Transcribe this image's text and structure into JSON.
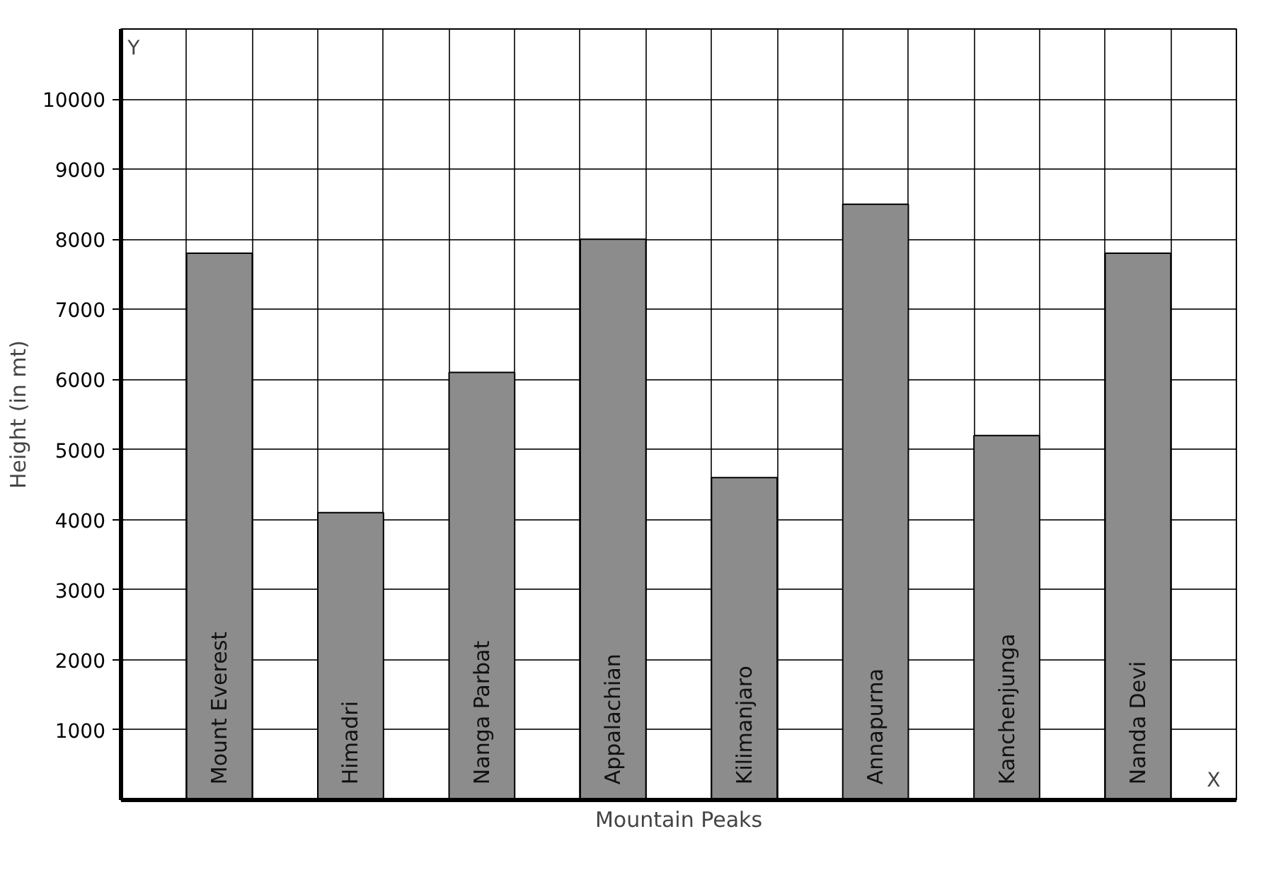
{
  "chart_data": {
    "type": "bar",
    "xlabel": "Mountain Peaks",
    "ylabel": "Height (in mt)",
    "categories": [
      "Mount Everest",
      "Himadri",
      "Nanga Parbat",
      "Appalachian",
      "Kilimanjaro",
      "Annapurna",
      "Kanchenjunga",
      "Nanda Devi"
    ],
    "values": [
      7800,
      4100,
      6100,
      8000,
      4600,
      8500,
      5200,
      7800
    ],
    "color": "#8c8c8c",
    "ylim": [
      0,
      11000
    ],
    "yticks": [
      1000,
      2000,
      3000,
      4000,
      5000,
      6000,
      7000,
      8000,
      9000,
      10000
    ],
    "annotations": [
      "Y",
      "X"
    ],
    "grid": true,
    "tick_labels": "y"
  }
}
